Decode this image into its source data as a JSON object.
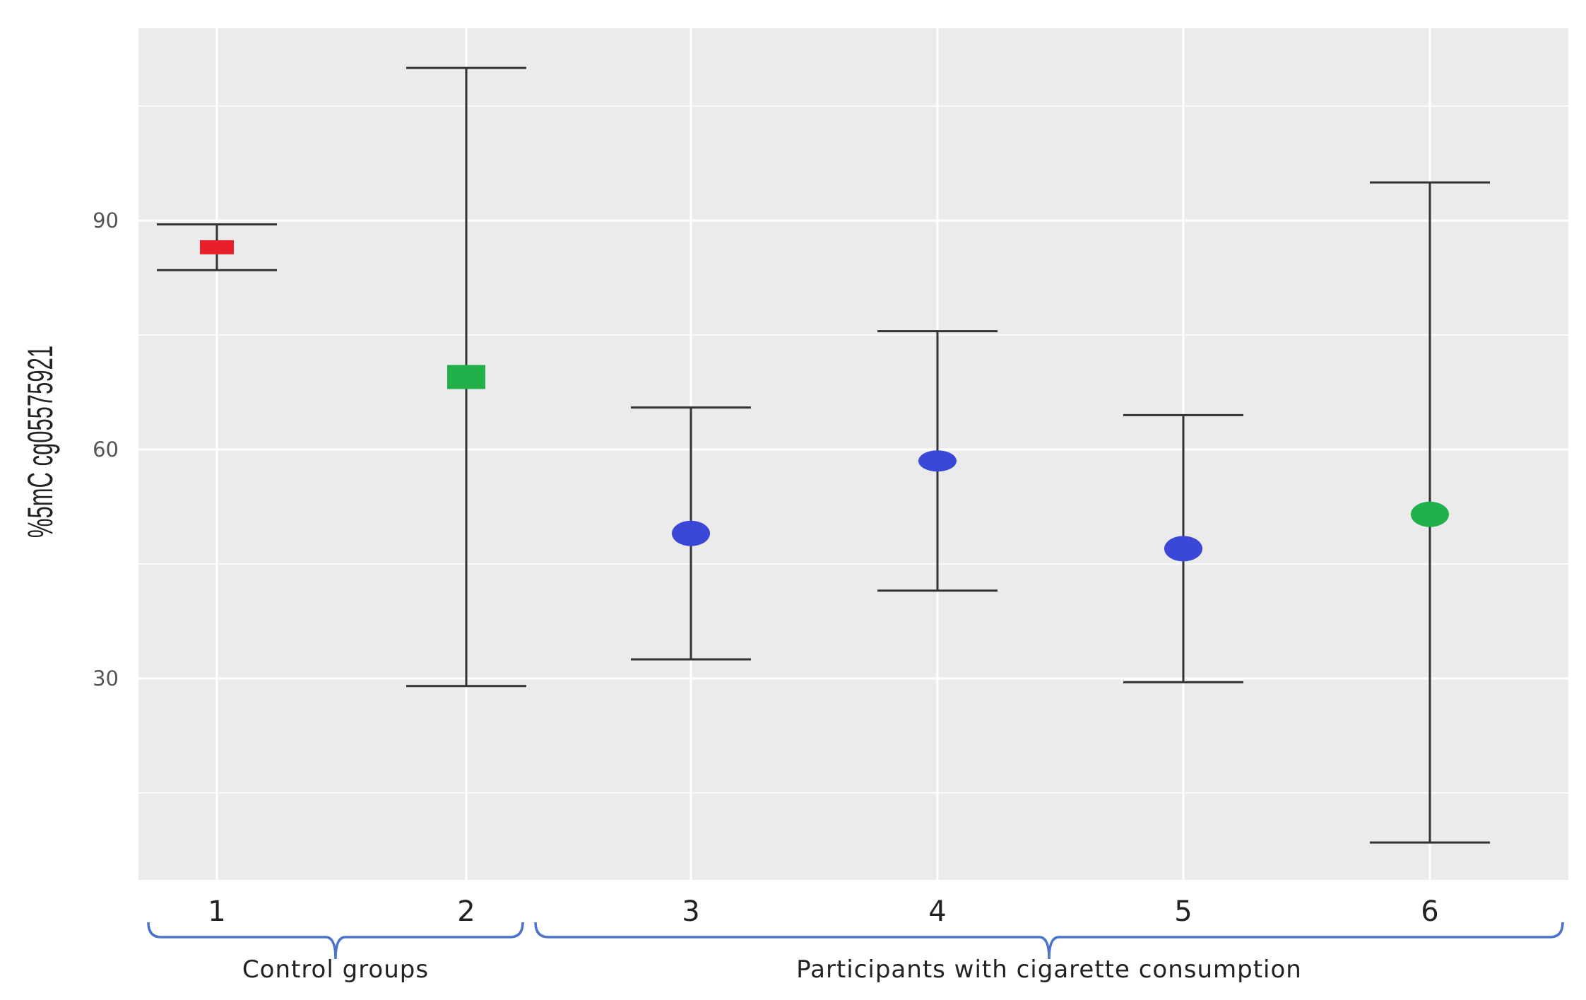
{
  "chart_data": {
    "type": "scatter",
    "title": "",
    "xlabel": "",
    "ylabel": "%5mC cg05575921",
    "categories": [
      "1",
      "2",
      "3",
      "4",
      "5",
      "6"
    ],
    "points": [
      {
        "x": "1",
        "y": 86.5,
        "lower": 83.5,
        "upper": 89.5,
        "marker": "square",
        "color": "#e8202a"
      },
      {
        "x": "2",
        "y": 69.5,
        "lower": 29,
        "upper": 110,
        "marker": "square",
        "color": "#22b04b"
      },
      {
        "x": "3",
        "y": 49,
        "lower": 32.5,
        "upper": 65.5,
        "marker": "circle",
        "color": "#3b47d6"
      },
      {
        "x": "4",
        "y": 58.5,
        "lower": 41.5,
        "upper": 75.5,
        "marker": "circle",
        "color": "#3b47d6"
      },
      {
        "x": "5",
        "y": 47,
        "lower": 29.5,
        "upper": 64.5,
        "marker": "circle",
        "color": "#3b47d6"
      },
      {
        "x": "6",
        "y": 51.5,
        "lower": 8.5,
        "upper": 95,
        "marker": "circle",
        "color": "#22b04b"
      }
    ],
    "yticks": [
      30,
      60,
      90
    ],
    "ylim": [
      3.6,
      115.2
    ],
    "grid": true,
    "legend": "none",
    "groups": [
      {
        "label": "Control groups",
        "from": "1",
        "to": "2"
      },
      {
        "label": "Participants with cigarette consumption",
        "from": "3",
        "to": "6"
      }
    ],
    "colors": {
      "panel": "#ebebeb",
      "grid": "#ffffff",
      "errorbar": "#333333",
      "bracket": "#4a74c9"
    }
  }
}
